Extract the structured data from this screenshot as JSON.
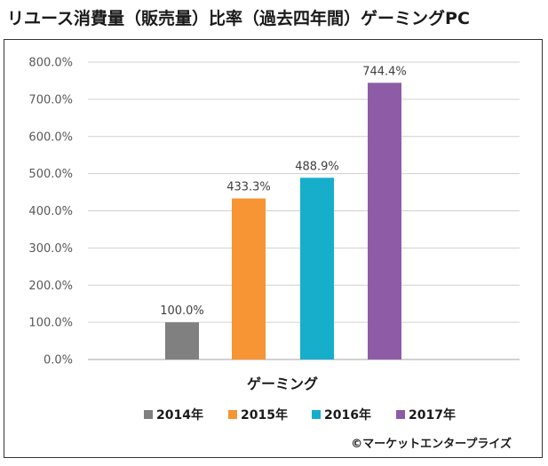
{
  "title": "リユース消費量（販売量）比率（過去四年間）ゲーミングPC",
  "copyright": "©マーケットエンタープライズ",
  "chart_data": {
    "type": "bar",
    "categories": [
      "ゲーミング"
    ],
    "series": [
      {
        "name": "2014年",
        "values": [
          100.0
        ],
        "color": "#808080",
        "label": "100.0%"
      },
      {
        "name": "2015年",
        "values": [
          433.3
        ],
        "color": "#f79433",
        "label": "433.3%"
      },
      {
        "name": "2016年",
        "values": [
          488.9
        ],
        "color": "#17aecc",
        "label": "488.9%"
      },
      {
        "name": "2017年",
        "values": [
          744.4
        ],
        "color": "#8e5ca6",
        "label": "744.4%"
      }
    ],
    "ylim": [
      0,
      800
    ],
    "yticks": [
      "0.0%",
      "100.0%",
      "200.0%",
      "300.0%",
      "400.0%",
      "500.0%",
      "600.0%",
      "700.0%",
      "800.0%"
    ],
    "grid": true,
    "legend": "bottom"
  }
}
